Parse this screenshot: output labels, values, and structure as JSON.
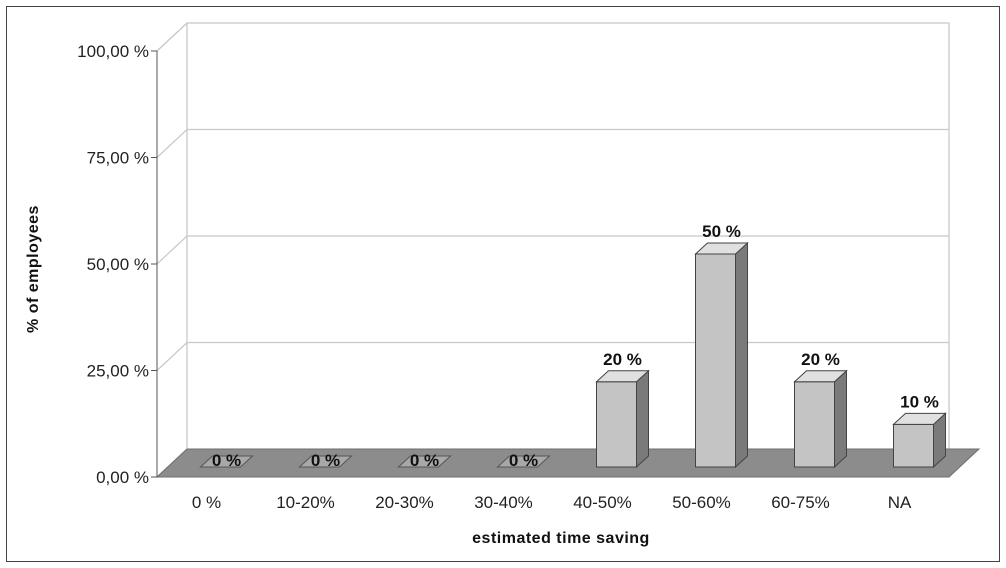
{
  "chart_data": {
    "type": "bar",
    "title": "",
    "xlabel": "estimated time saving",
    "ylabel": "% of employees",
    "ylim": [
      0,
      100
    ],
    "y_ticks": [
      "0,00 %",
      "25,00 %",
      "50,00 %",
      "75,00 %",
      "100,00 %"
    ],
    "categories": [
      "0 %",
      "10-20%",
      "20-30%",
      "30-40%",
      "40-50%",
      "50-60%",
      "60-75%",
      "NA"
    ],
    "values": [
      0,
      0,
      0,
      0,
      20,
      50,
      20,
      10
    ],
    "data_labels": [
      "0 %",
      "0 %",
      "0 %",
      "0 %",
      "20 %",
      "50 %",
      "20 %",
      "10 %"
    ],
    "grid": true,
    "legend": "none",
    "style": "3d",
    "colors": {
      "bar_front": "#c4c4c4",
      "bar_side": "#7a7a7a",
      "bar_top": "#e0e0e0",
      "floor": "#8c8c8c",
      "grid": "#c8c8c8"
    }
  }
}
